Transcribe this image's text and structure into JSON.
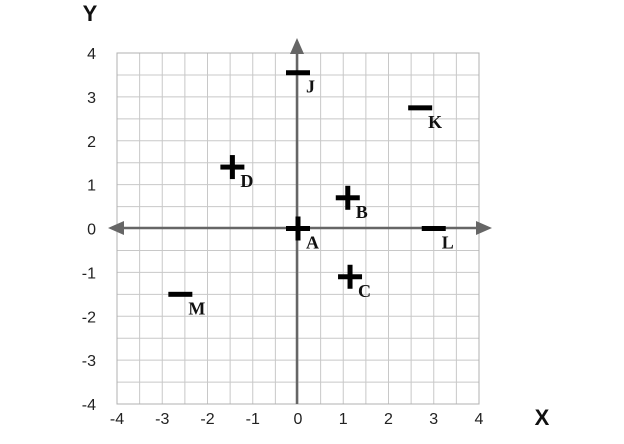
{
  "chart_data": {
    "type": "scatter",
    "xlabel": "X",
    "ylabel": "Y",
    "xlim": [
      -4,
      4
    ],
    "ylim": [
      -4,
      4
    ],
    "grid": true,
    "x_ticks": [
      "-4",
      "-3",
      "-2",
      "-1",
      "0",
      "1",
      "2",
      "3",
      "4"
    ],
    "y_ticks": [
      "4",
      "3",
      "2",
      "1",
      "0",
      "-1",
      "-2",
      "-3",
      "-4"
    ],
    "points": [
      {
        "label": "A",
        "sign": "+",
        "x": 0.0,
        "y": 0.0
      },
      {
        "label": "B",
        "sign": "+",
        "x": 1.1,
        "y": 0.7
      },
      {
        "label": "C",
        "sign": "+",
        "x": 1.15,
        "y": -1.1
      },
      {
        "label": "D",
        "sign": "+",
        "x": -1.45,
        "y": 1.4
      },
      {
        "label": "J",
        "sign": "-",
        "x": 0.0,
        "y": 3.55
      },
      {
        "label": "K",
        "sign": "-",
        "x": 2.7,
        "y": 2.75
      },
      {
        "label": "L",
        "sign": "-",
        "x": 3.0,
        "y": 0.0
      },
      {
        "label": "M",
        "sign": "-",
        "x": -2.6,
        "y": -1.5
      }
    ]
  }
}
